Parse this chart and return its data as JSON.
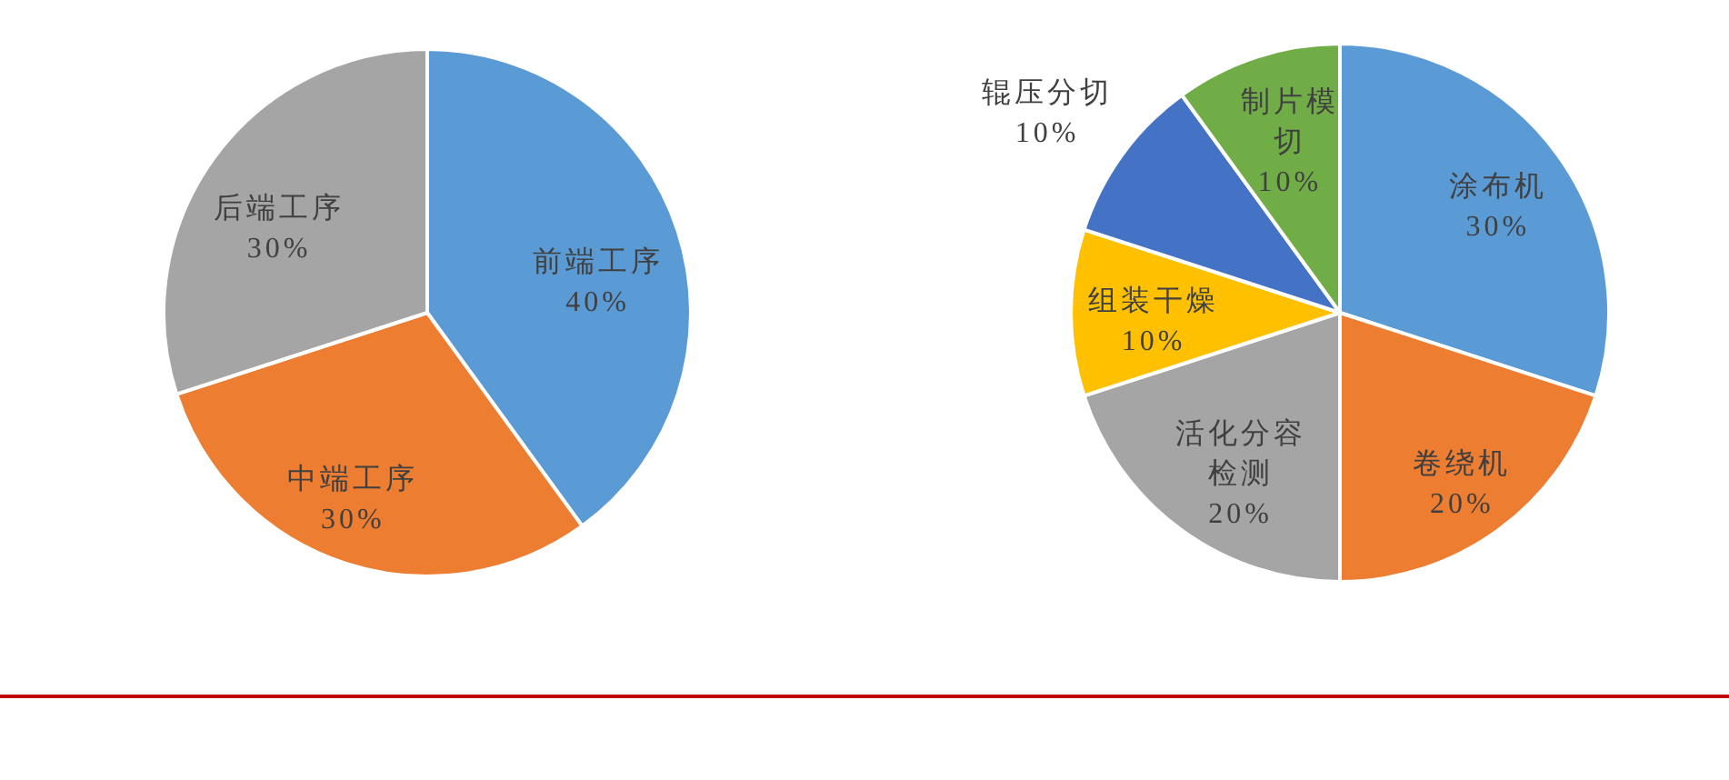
{
  "chart_data": [
    {
      "type": "pie",
      "categories": [
        "前端工序",
        "中端工序",
        "后端工序"
      ],
      "values": [
        40,
        30,
        30
      ],
      "colors": [
        "#5b9bd5",
        "#ed7d31",
        "#a5a5a5"
      ],
      "value_labels": [
        "40%",
        "30%",
        "30%"
      ]
    },
    {
      "type": "pie",
      "categories": [
        "涂布机",
        "卷绕机",
        "活化分容检测",
        "组装干燥",
        "辊压分切",
        "制片模切"
      ],
      "values": [
        30,
        20,
        20,
        10,
        10,
        10
      ],
      "colors": [
        "#5b9bd5",
        "#ed7d31",
        "#a5a5a5",
        "#ffc000",
        "#4472c4",
        "#70ad47"
      ],
      "value_labels": [
        "30%",
        "20%",
        "20%",
        "10%",
        "10%",
        "10%"
      ]
    }
  ]
}
